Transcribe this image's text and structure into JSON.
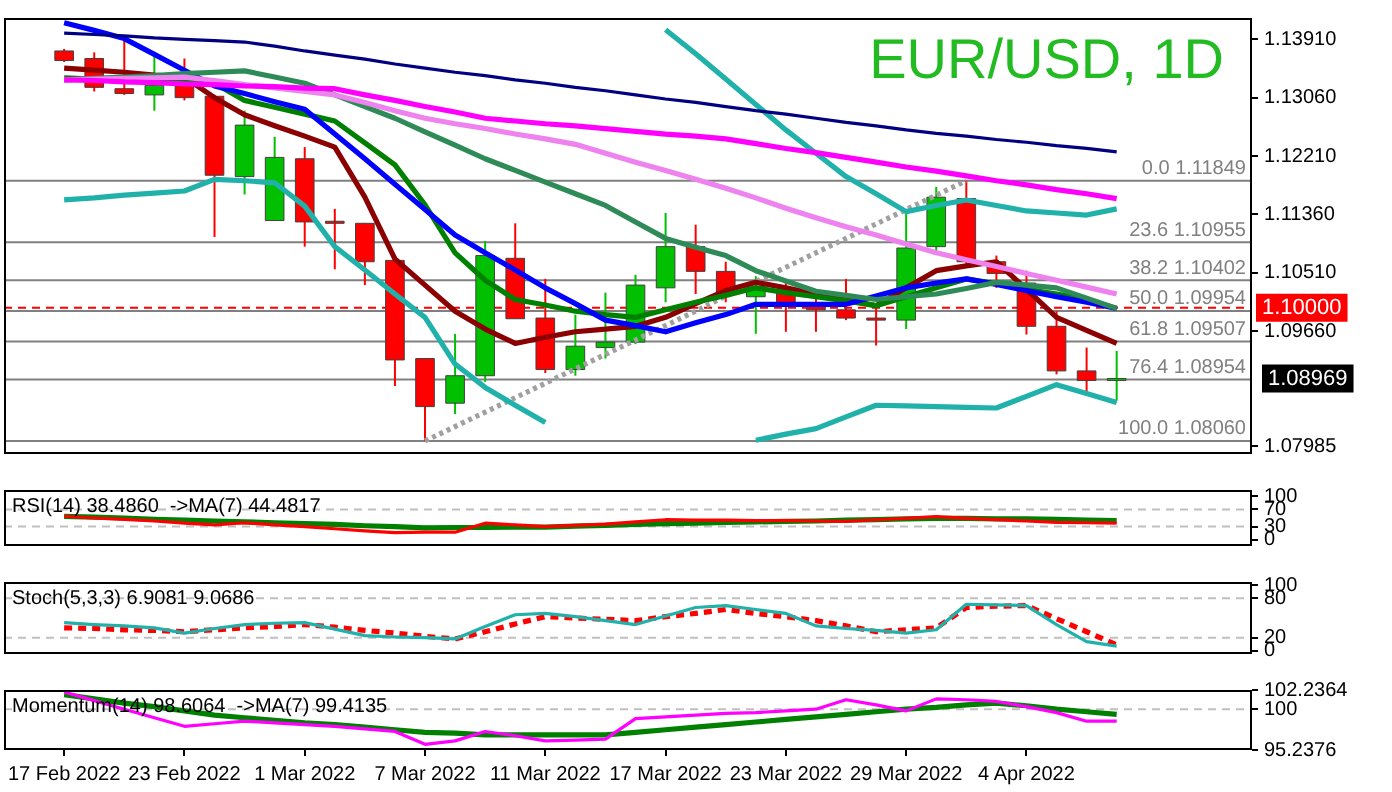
{
  "chart_data": [
    {
      "type": "candlestick",
      "title": "EUR/USD, 1D",
      "categories": [
        null,
        null,
        null,
        null,
        null,
        null,
        null,
        null,
        null,
        null,
        null,
        null,
        null,
        null,
        null,
        null,
        null,
        null,
        null,
        null,
        null,
        null,
        null,
        null,
        null,
        null,
        null,
        null,
        null,
        null,
        null,
        null,
        null,
        null,
        null,
        null
      ],
      "ohlc": [
        [
          1.1374,
          1.1377,
          1.1358,
          1.136
        ],
        [
          1.1363,
          1.1372,
          1.1315,
          1.1321
        ],
        [
          1.1319,
          1.1397,
          1.131,
          1.1312
        ],
        [
          1.131,
          1.1368,
          1.1287,
          1.1324
        ],
        [
          1.1327,
          1.1363,
          1.1302,
          1.1306
        ],
        [
          1.1308,
          1.131,
          1.1103,
          1.1193
        ],
        [
          1.1191,
          1.1287,
          1.1165,
          1.1266
        ],
        [
          1.1127,
          1.1249,
          1.1127,
          1.1219
        ],
        [
          1.1217,
          1.1234,
          1.1089,
          1.1125
        ],
        [
          1.1126,
          1.1144,
          1.1056,
          1.1123
        ],
        [
          1.1123,
          1.1123,
          1.1033,
          1.1067
        ],
        [
          1.1069,
          1.1069,
          1.0886,
          1.0924
        ],
        [
          1.0926,
          1.0926,
          1.0806,
          1.0856
        ],
        [
          1.0861,
          1.0962,
          1.0845,
          1.0901
        ],
        [
          1.0901,
          1.1097,
          1.0892,
          1.1076
        ],
        [
          1.1072,
          1.1123,
          1.0984,
          1.0984
        ],
        [
          1.0985,
          1.1042,
          1.0905,
          1.091
        ],
        [
          1.091,
          1.099,
          1.0901,
          1.0944
        ],
        [
          1.0942,
          1.1022,
          1.0926,
          1.095
        ],
        [
          1.095,
          1.1048,
          1.0947,
          1.1033
        ],
        [
          1.1029,
          1.1138,
          1.1008,
          1.1089
        ],
        [
          1.1089,
          1.1121,
          1.102,
          1.1053
        ],
        [
          1.1053,
          1.1067,
          1.1008,
          1.1019
        ],
        [
          1.1016,
          1.1046,
          1.0962,
          1.1031
        ],
        [
          1.1027,
          1.1042,
          1.0965,
          1.1006
        ],
        [
          1.1007,
          1.102,
          1.0965,
          1.0997
        ],
        [
          1.0997,
          1.1042,
          1.0982,
          1.0985
        ],
        [
          1.0985,
          1.1003,
          1.0945,
          1.0982
        ],
        [
          1.0982,
          1.114,
          1.0969,
          1.1087
        ],
        [
          1.1089,
          1.1176,
          1.108,
          1.1161
        ],
        [
          1.1159,
          1.1185,
          1.1063,
          1.1067
        ],
        [
          1.1067,
          1.1076,
          1.1029,
          1.105
        ],
        [
          1.1036,
          1.1054,
          1.0961,
          1.0973
        ],
        [
          1.0973,
          1.0995,
          1.0903,
          1.0908
        ],
        [
          1.0908,
          1.0942,
          1.0877,
          1.0894
        ],
        [
          1.0895,
          1.0937,
          1.0865,
          1.0897
        ]
      ],
      "colors": [
        "#ff0000",
        "#ff0000",
        "#ff0000",
        "#00c000",
        "#ff0000",
        "#ff0000",
        "#00c000",
        "#00c000",
        "#ff0000",
        "#ff0000",
        "#ff0000",
        "#ff0000",
        "#ff0000",
        "#00c000",
        "#00c000",
        "#ff0000",
        "#ff0000",
        "#00c000",
        "#00c000",
        "#00c000",
        "#00c000",
        "#ff0000",
        "#ff0000",
        "#00c000",
        "#ff0000",
        "#ff0000",
        "#ff0000",
        "#ff0000",
        "#00c000",
        "#00c000",
        "#ff0000",
        "#ff0000",
        "#ff0000",
        "#ff0000",
        "#ff0000",
        "#00c000"
      ],
      "series": [
        {
          "type": "line",
          "color": "#000080",
          "values": [
            1.14,
            1.1398,
            1.1396,
            1.1393,
            1.1391,
            1.1389,
            1.1387,
            1.1381,
            1.1374,
            1.1368,
            1.1362,
            1.1355,
            1.1349,
            1.1343,
            1.1338,
            1.1332,
            1.1327,
            1.1321,
            1.1316,
            1.131,
            1.1304,
            1.1299,
            1.1293,
            1.1287,
            1.1282,
            1.1276,
            1.127,
            1.1265,
            1.1259,
            1.1254,
            1.125,
            1.1245,
            1.1241,
            1.1236,
            1.1232,
            1.1227
          ]
        },
        {
          "type": "line",
          "color": "#ff00ff",
          "values": [
            1.1332,
            1.1331,
            1.1329,
            1.1328,
            1.1326,
            1.1325,
            1.1323,
            1.1322,
            1.132,
            1.1319,
            1.131,
            1.1302,
            1.1293,
            1.1285,
            1.1276,
            1.1272,
            1.1268,
            1.1265,
            1.1261,
            1.1257,
            1.1253,
            1.125,
            1.1246,
            1.1239,
            1.1232,
            1.1226,
            1.1219,
            1.1212,
            1.1205,
            1.1199,
            1.1192,
            1.1185,
            1.1179,
            1.1172,
            1.1166,
            1.1159
          ]
        },
        {
          "type": "line",
          "color": "#ee82ee",
          "values": [
            1.1332,
            1.1333,
            1.1334,
            1.1335,
            1.1336,
            1.1331,
            1.1325,
            1.132,
            1.1315,
            1.131,
            1.1299,
            1.1287,
            1.1276,
            1.1268,
            1.1261,
            1.1253,
            1.1246,
            1.1238,
            1.1225,
            1.1212,
            1.12,
            1.1187,
            1.1174,
            1.116,
            1.1145,
            1.1131,
            1.1118,
            1.1106,
            1.1093,
            1.108,
            1.107,
            1.106,
            1.105,
            1.104,
            1.103,
            1.102
          ]
        },
        {
          "type": "line",
          "color": "#2e8b57",
          "values": [
            1.1332,
            1.1334,
            1.1336,
            1.1338,
            1.1341,
            1.1343,
            1.1345,
            1.1336,
            1.1327,
            1.131,
            1.1293,
            1.1276,
            1.1256,
            1.1237,
            1.1217,
            1.12,
            1.1183,
            1.1166,
            1.1149,
            1.1125,
            1.1101,
            1.1088,
            1.1076,
            1.1054,
            1.1039,
            1.1024,
            1.1018,
            1.1012,
            1.1016,
            1.102,
            1.1028,
            1.1037,
            1.1033,
            1.1029,
            1.1014,
            1.0999
          ]
        },
        {
          "type": "line",
          "color": "#0000ff",
          "values": [
            1.1415,
            1.1404,
            1.1392,
            1.1369,
            1.1346,
            1.1323,
            1.1312,
            1.13,
            1.1289,
            1.1253,
            1.1217,
            1.118,
            1.1143,
            1.1106,
            1.108,
            1.1055,
            1.1029,
            1.1006,
            1.0982,
            1.0974,
            1.0965,
            1.0978,
            1.099,
            1.1005,
            1.1005,
            1.1005,
            1.1005,
            1.1017,
            1.1029,
            1.1036,
            1.1042,
            1.1034,
            1.1025,
            1.1016,
            1.1008,
            1.0999
          ]
        },
        {
          "type": "line",
          "color": "#008000",
          "values": [
            1.1335,
            1.1333,
            1.1332,
            1.133,
            1.1329,
            1.1327,
            1.1302,
            1.1292,
            1.1282,
            1.1272,
            1.124,
            1.1208,
            1.115,
            1.108,
            1.104,
            1.1012,
            1.1004,
            1.0995,
            1.099,
            1.0986,
            1.0997,
            1.1008,
            1.1018,
            1.1029,
            1.1022,
            1.1016,
            1.101,
            1.1003,
            1.1016,
            1.1029,
            1.1042,
            1.1035,
            1.1027,
            1.102,
            1.1012,
            1.0999
          ]
        },
        {
          "type": "line",
          "color": "#8b0000",
          "values": [
            1.1349,
            1.1346,
            1.1343,
            1.1339,
            1.1336,
            1.1306,
            1.1281,
            1.1265,
            1.125,
            1.1234,
            1.1161,
            1.1071,
            1.1033,
            1.0995,
            1.0969,
            1.0948,
            1.0957,
            1.0965,
            1.0969,
            1.0973,
            1.0986,
            1.1006,
            1.1025,
            1.1037,
            1.1029,
            1.102,
            1.1012,
            1.1003,
            1.1029,
            1.1054,
            1.1061,
            1.1067,
            1.1027,
            1.0986,
            1.0967,
            1.0948
          ]
        },
        {
          "type": "line",
          "color": "#20b2aa",
          "values": [
            null,
            null,
            null,
            null,
            null,
            null,
            null,
            null,
            null,
            null,
            null,
            null,
            null,
            null,
            null,
            null,
            null,
            null,
            null,
            null,
            1.1405,
            1.137,
            1.1333,
            1.1296,
            1.1259,
            1.1225,
            1.1191,
            1.1166,
            1.114,
            1.1149,
            1.1157,
            1.1149,
            1.1141,
            1.1138,
            1.1135,
            1.1144
          ]
        },
        {
          "type": "line",
          "color": "#20b2aa",
          "values": [
            1.1157,
            1.116,
            1.1164,
            1.1167,
            1.117,
            1.1187,
            1.1185,
            1.1182,
            1.1148,
            1.1089,
            1.1055,
            1.102,
            1.0986,
            1.0918,
            1.0884,
            1.0858,
            1.0833,
            null,
            null,
            null,
            null,
            null,
            null,
            1.0807,
            1.0816,
            1.0824,
            1.0841,
            1.0858,
            1.0857,
            1.0856,
            1.0855,
            1.0854,
            1.0871,
            1.0888,
            1.0875,
            1.0862
          ]
        },
        {
          "type": "line",
          "color": "#a0a0a0",
          "line_style": "dotted",
          "values": [
            null,
            null,
            null,
            null,
            null,
            null,
            null,
            null,
            null,
            null,
            null,
            null,
            1.0806,
            1.0827,
            1.0848,
            1.0869,
            1.089,
            1.0911,
            1.0932,
            1.0953,
            1.0974,
            1.0995,
            1.1017,
            1.1038,
            1.1059,
            1.108,
            1.1101,
            1.1122,
            1.1143,
            1.1164,
            1.1185,
            null,
            null,
            null,
            null,
            null
          ]
        }
      ],
      "ylim": [
        1.0787,
        1.1422
      ],
      "yticks": [
        {
          "value": 1.1391,
          "label": "1.13910"
        },
        {
          "value": 1.1306,
          "label": "1.13060"
        },
        {
          "value": 1.1221,
          "label": "1.12210"
        },
        {
          "value": 1.1136,
          "label": "1.11360"
        },
        {
          "value": 1.1051,
          "label": "1.10510"
        },
        {
          "value": 1.0966,
          "label": "1.09660"
        },
        {
          "value": 1.07985,
          "label": "1.07985"
        }
      ],
      "ref_lines": [
        {
          "axis": "y",
          "value": 1.11849,
          "label": "0.0 1.11849",
          "color": "#808080",
          "line_style": "solid"
        },
        {
          "axis": "y",
          "value": 1.10955,
          "label": "23.6 1.10955",
          "color": "#808080",
          "line_style": "solid"
        },
        {
          "axis": "y",
          "value": 1.10402,
          "label": "38.2 1.10402",
          "color": "#808080",
          "line_style": "solid"
        },
        {
          "axis": "y",
          "value": 1.09954,
          "label": "50.0 1.09954",
          "color": "#808080",
          "line_style": "solid"
        },
        {
          "axis": "y",
          "value": 1.09507,
          "label": "61.8 1.09507",
          "color": "#808080",
          "line_style": "solid"
        },
        {
          "axis": "y",
          "value": 1.08954,
          "label": "76.4 1.08954",
          "color": "#808080",
          "line_style": "solid"
        },
        {
          "axis": "y",
          "value": 1.0806,
          "label": "100.0 1.08060",
          "color": "#808080",
          "line_style": "solid"
        },
        {
          "axis": "y",
          "value": 1.1,
          "label": "1.10000",
          "color": "#ff0000",
          "line_style": "dashed"
        }
      ],
      "annotations": [
        "1.08969"
      ],
      "tick_labels": "y"
    },
    {
      "type": "line",
      "title": "RSI(14) 38.4860  ->MA(7) 44.4817",
      "categories": [
        null,
        null,
        null,
        null,
        null,
        null,
        null,
        null,
        null,
        null,
        null,
        null,
        null,
        null,
        null,
        null,
        null,
        null,
        null,
        null,
        null,
        null,
        null,
        null,
        null,
        null,
        null,
        null,
        null,
        null,
        null,
        null,
        null,
        null,
        null,
        null
      ],
      "series": [
        {
          "color": "#ff0000",
          "values": [
            54,
            50,
            47,
            43,
            38,
            34,
            39,
            34,
            30,
            25,
            20,
            16,
            17,
            17,
            38,
            34,
            30,
            33,
            36,
            41,
            46,
            45,
            45,
            44,
            44,
            43,
            42,
            46,
            49,
            53,
            49,
            46,
            43,
            40,
            39,
            38
          ]
        },
        {
          "color": "#008000",
          "values": [
            54,
            52,
            50,
            47,
            45,
            43,
            41,
            39,
            37,
            35,
            32,
            30,
            27,
            28,
            28,
            29,
            29,
            31,
            33,
            35,
            37,
            38,
            40,
            41,
            42,
            43,
            45,
            46,
            48,
            49,
            49,
            48,
            48,
            47,
            45,
            44
          ]
        }
      ],
      "ylim": [
        -15,
        115
      ],
      "yticks": [
        100,
        70,
        30,
        0
      ],
      "ref_lines": [
        {
          "axis": "y",
          "value": 70,
          "color": "#c0c0c0",
          "line_style": "dashed"
        },
        {
          "axis": "y",
          "value": 30,
          "color": "#c0c0c0",
          "line_style": "dashed"
        }
      ],
      "tick_labels": "y"
    },
    {
      "type": "line",
      "title": "Stoch(5,3,3) 6.9081 9.0686",
      "categories": [
        null,
        null,
        null,
        null,
        null,
        null,
        null,
        null,
        null,
        null,
        null,
        null,
        null,
        null,
        null,
        null,
        null,
        null,
        null,
        null,
        null,
        null,
        null,
        null,
        null,
        null,
        null,
        null,
        null,
        null,
        null,
        null,
        null,
        null,
        null,
        null
      ],
      "series": [
        {
          "color": "#20b2aa",
          "values": [
            43,
            40,
            38,
            35,
            27,
            34,
            40,
            42,
            43,
            33,
            23,
            21,
            20,
            18,
            37,
            55,
            57,
            52,
            46,
            40,
            53,
            66,
            69,
            63,
            57,
            38,
            34,
            31,
            27,
            32,
            71,
            70,
            69,
            40,
            14,
            7
          ]
        },
        {
          "color": "#ff0000",
          "line_style": "dashed",
          "values": [
            35,
            34,
            32,
            31,
            29,
            32,
            35,
            37,
            40,
            36,
            31,
            27,
            22,
            18,
            29,
            41,
            52,
            50,
            48,
            46,
            52,
            57,
            63,
            57,
            52,
            46,
            38,
            29,
            32,
            35,
            66,
            68,
            69,
            49,
            29,
            9
          ]
        }
      ],
      "ylim": [
        -5,
        105
      ],
      "yticks": [
        100,
        80,
        20,
        0
      ],
      "ref_lines": [
        {
          "axis": "y",
          "value": 80,
          "color": "#c0c0c0",
          "line_style": "dashed"
        },
        {
          "axis": "y",
          "value": 20,
          "color": "#c0c0c0",
          "line_style": "dashed"
        }
      ],
      "tick_labels": "y"
    },
    {
      "type": "line",
      "title": "Momentum(14) 98.6064  ->MA(7) 99.4135",
      "categories": [
        "17 Feb 2022",
        null,
        null,
        null,
        "23 Feb 2022",
        null,
        null,
        null,
        "1 Mar 2022",
        null,
        null,
        null,
        "7 Mar 2022",
        null,
        null,
        null,
        "11 Mar 2022",
        null,
        null,
        null,
        "17 Mar 2022",
        null,
        null,
        null,
        "23 Mar 2022",
        null,
        null,
        null,
        "29 Mar 2022",
        null,
        null,
        null,
        "4 Apr 2022",
        null,
        null,
        null
      ],
      "series": [
        {
          "color": "#ff00ff",
          "values": [
            102.0,
            101.0,
            100.0,
            99.0,
            98.0,
            98.3,
            98.6,
            98.4,
            98.2,
            98.0,
            97.7,
            97.4,
            95.9,
            96.3,
            97.4,
            96.9,
            96.3,
            96.4,
            96.5,
            98.9,
            99.1,
            99.3,
            99.5,
            99.6,
            99.8,
            100.0,
            101.1,
            100.5,
            99.8,
            101.2,
            101.1,
            100.9,
            100.3,
            99.6,
            98.6,
            98.6
          ]
        },
        {
          "color": "#008000",
          "values": [
            101.7,
            101.2,
            100.7,
            100.3,
            99.8,
            99.3,
            99.0,
            98.7,
            98.4,
            98.2,
            97.9,
            97.6,
            97.3,
            97.2,
            97.0,
            97.0,
            97.0,
            97.0,
            97.0,
            97.3,
            97.6,
            97.9,
            98.2,
            98.5,
            98.8,
            99.1,
            99.4,
            99.7,
            100.0,
            100.2,
            100.5,
            100.7,
            100.4,
            100.0,
            99.7,
            99.4
          ]
        }
      ],
      "ylim": [
        95.2376,
        102.2364
      ],
      "yticks": [
        102.2364,
        100,
        95.2376
      ],
      "ref_lines": [
        {
          "axis": "y",
          "value": 100,
          "color": "#c0c0c0",
          "line_style": "dashed"
        }
      ]
    }
  ]
}
